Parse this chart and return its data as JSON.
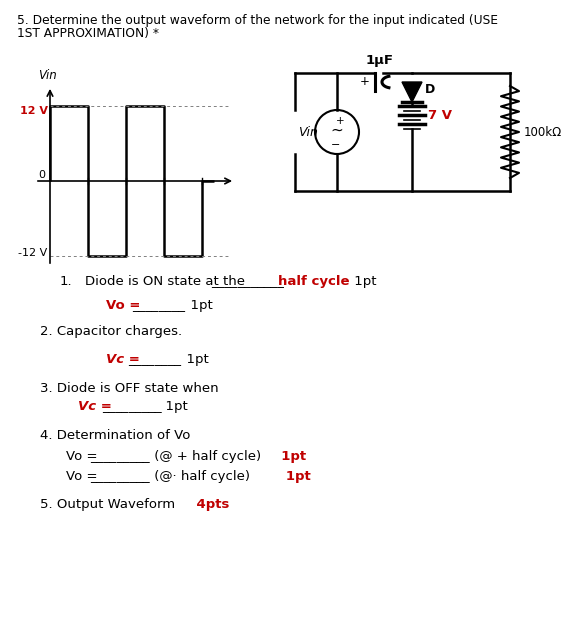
{
  "title_line1": "5. Determine the output waveform of the network for the input indicated (USE",
  "title_line2": "1ST APPROXIMATION) *",
  "bg_color": "#ffffff",
  "BLACK": "#000000",
  "RED": "#c00000",
  "vin_label": "Vin",
  "vin_12": "12 V",
  "vin_0": "0",
  "vin_neg12": "-12 V",
  "cap_label": "1μF",
  "diode_label": "D",
  "res_label": "100kΩ",
  "bat_label": "7 V",
  "ckt_vin": "Vin",
  "q1_black": "Diode is ON state at the ",
  "q1_line": "___________",
  "q1_red": "half cycle",
  "q1_pt": " 1pt",
  "q1b_red": "Vo =",
  "q1b_line": "________",
  "q1b_pt": "  1pt",
  "q2_black": "2. Capacitor charges.",
  "q2b_red": "Vc =",
  "q2b_line": "________",
  "q2b_pt": "  1pt",
  "q3_black": "3. Diode is OFF state when",
  "q3b_red": "Vc =",
  "q3b_line": "_________",
  "q3b_pt": "  1pt",
  "q4_black": "4. Determination of Vo",
  "q4a_black1": "Vo =",
  "q4a_line": "_________",
  "q4a_black2": " (@ + half cycle)",
  "q4a_red": "  1pt",
  "q4b_black1": "Vo =",
  "q4b_line": "_________",
  "q4b_black2": " (@· half cycle)",
  "q4b_red": "   1pt",
  "q5_black": "5. Output Waveform",
  "q5_red": "    4pts"
}
